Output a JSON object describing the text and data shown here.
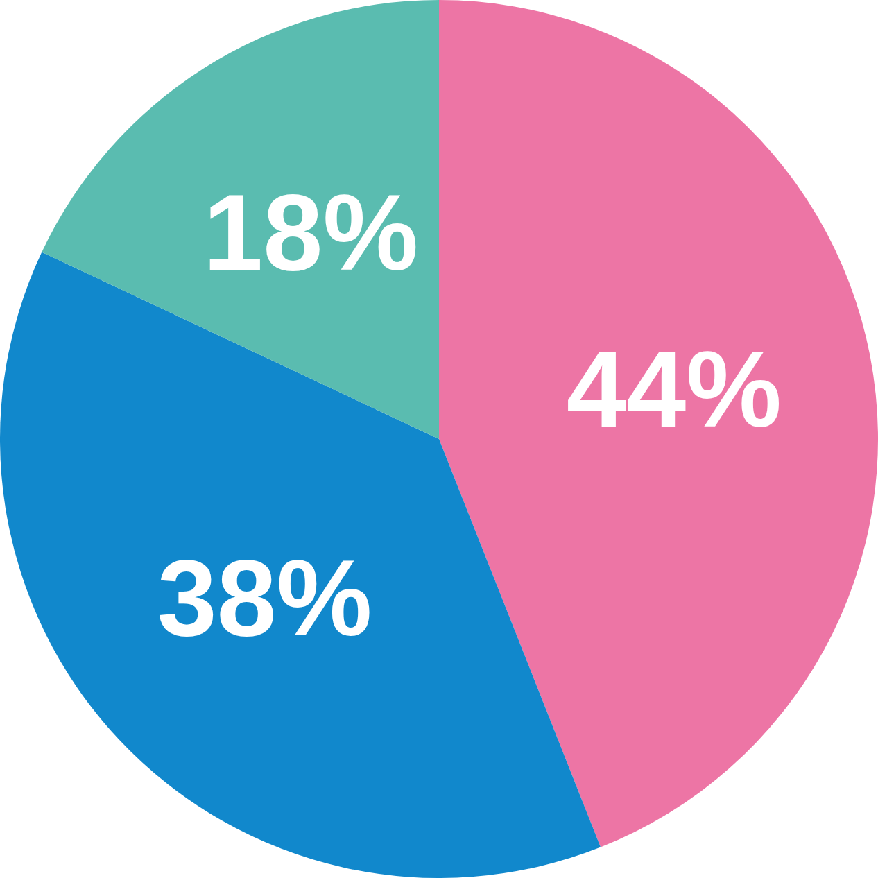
{
  "chart_data": {
    "type": "pie",
    "categories": [
      null,
      null,
      null
    ],
    "values": [
      44,
      38,
      18
    ],
    "colors": [
      "#ed75a5",
      "#1188cc",
      "#5abcb0"
    ],
    "value_labels": [
      "44%",
      "38%",
      "18%"
    ],
    "legend": false
  }
}
